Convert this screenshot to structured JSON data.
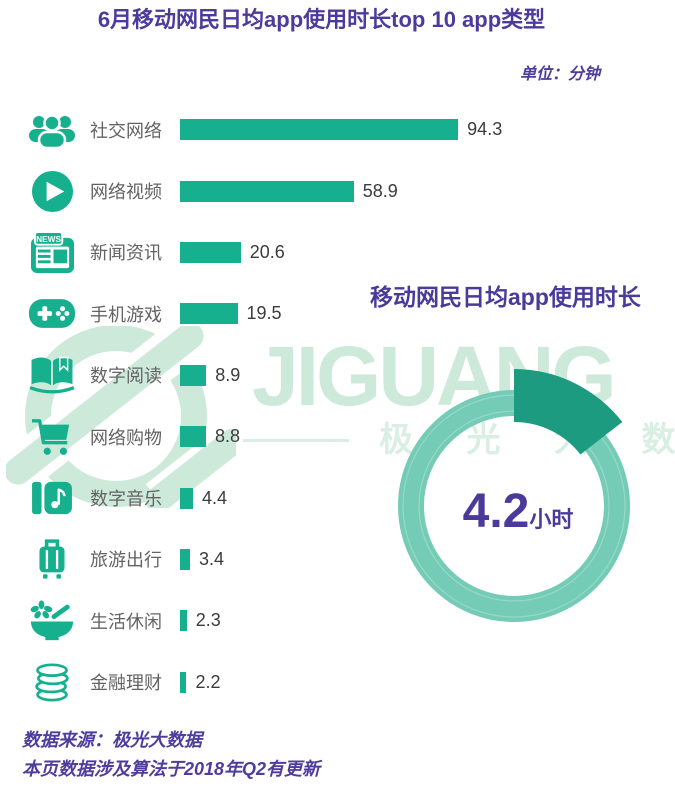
{
  "page": {
    "title": "6月移动网民日均app使用时长top 10 app类型",
    "unit_label": "单位：分钟",
    "source_line1": "数据来源：极光大数据",
    "source_line2": "本页数据涉及算法于2018年Q2有更新"
  },
  "watermark": {
    "brand": "JIGUANG",
    "brand_cn": "极 光 大 数 据",
    "logo": "jiguang-logo"
  },
  "colors": {
    "accent_purple": "#4c3b9c",
    "bar_green": "#17b08e",
    "ring_light": "#74ccb6",
    "wedge_green": "#1d9b80",
    "watermark_green": "#cde9da",
    "label_gray": "#636363",
    "value_gray": "#3b3b3b"
  },
  "chart_data": [
    {
      "type": "bar",
      "orientation": "horizontal",
      "title": "6月移动网民日均app使用时长top 10 app类型",
      "unit": "分钟",
      "categories": [
        "社交网络",
        "网络视频",
        "新闻资讯",
        "手机游戏",
        "数字阅读",
        "网络购物",
        "数字音乐",
        "旅游出行",
        "生活休闲",
        "金融理财"
      ],
      "values": [
        94.3,
        58.9,
        20.6,
        19.5,
        8.9,
        8.8,
        4.4,
        3.4,
        2.3,
        2.2
      ],
      "icons": [
        "users-icon",
        "play-icon",
        "news-icon",
        "gamepad-icon",
        "book-icon",
        "cart-icon",
        "music-icon",
        "luggage-icon",
        "leisure-icon",
        "coins-icon"
      ],
      "xlim": [
        0,
        100
      ],
      "grid": false,
      "value_labels": true
    },
    {
      "type": "pie",
      "subtype": "donut-gauge",
      "title": "移动网民日均app使用时长",
      "center_value": "4.2",
      "center_unit": "小时",
      "value_hours": 4.2,
      "wedge_fraction": 0.145
    }
  ]
}
